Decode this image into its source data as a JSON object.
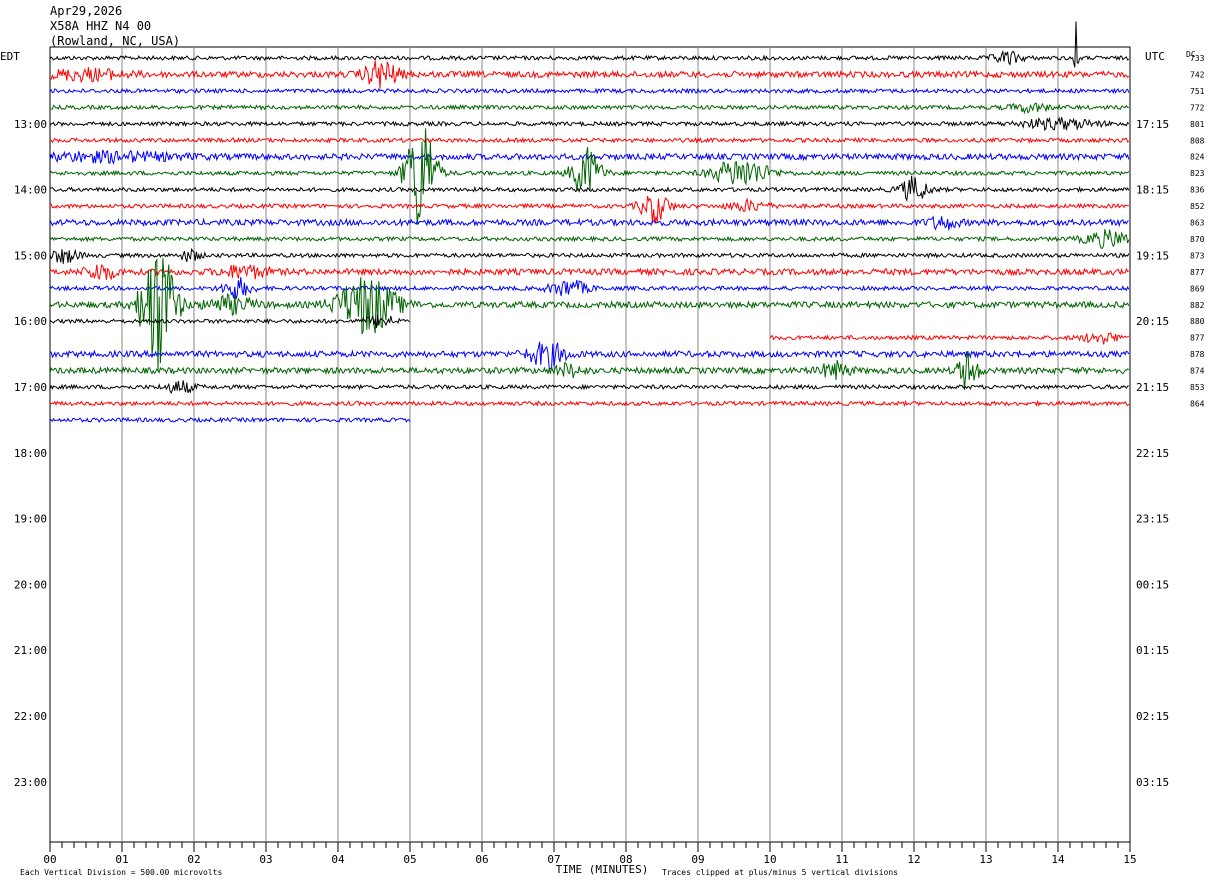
{
  "header": {
    "date": "Apr29,2026",
    "station": "X58A HHZ N4 00",
    "location": "(Rowland, NC, USA)"
  },
  "footer": {
    "scale_note": "Each Vertical Division =  500.00 microvolts",
    "clip_note": "Traces clipped at plus/minus 5 vertical divisions"
  },
  "chart_data": {
    "type": "line",
    "xlabel": "TIME (MINUTES)",
    "x_ticks": [
      "00",
      "01",
      "02",
      "03",
      "04",
      "05",
      "06",
      "07",
      "08",
      "09",
      "10",
      "11",
      "12",
      "13",
      "14",
      "15"
    ],
    "xlim": [
      0,
      15
    ],
    "left_axis_title": "EDT",
    "right_axis_title": "UTC",
    "dc_label": "DC",
    "left_hour_labels": [
      "13:00",
      "14:00",
      "15:00",
      "16:00",
      "17:00",
      "18:00",
      "19:00",
      "20:00",
      "21:00",
      "22:00",
      "23:00"
    ],
    "right_hour_labels": [
      "17:15",
      "18:15",
      "19:15",
      "20:15",
      "21:15",
      "22:15",
      "23:15",
      "00:15",
      "01:15",
      "02:15",
      "03:15"
    ],
    "trace_colors": [
      "#000000",
      "#ff0000",
      "#0000ff",
      "#006400"
    ],
    "dc_offsets": [
      733,
      742,
      751,
      772,
      801,
      808,
      824,
      823,
      836,
      852,
      863,
      870,
      873,
      877,
      869,
      882,
      880,
      877,
      878,
      874,
      853,
      864
    ],
    "traces": [
      {
        "end": 15,
        "amp": 2,
        "events": [
          {
            "t": 14.25,
            "amp": 36,
            "w": 0.04
          },
          {
            "t": 13.3,
            "amp": 6,
            "w": 0.3
          }
        ]
      },
      {
        "end": 15,
        "amp": 3,
        "events": [
          {
            "t": 4.6,
            "amp": 14,
            "w": 0.35
          },
          {
            "t": 0.5,
            "amp": 5,
            "w": 0.8
          }
        ]
      },
      {
        "end": 15,
        "amp": 2,
        "events": []
      },
      {
        "end": 15,
        "amp": 2,
        "events": [
          {
            "t": 13.6,
            "amp": 4,
            "w": 0.4
          }
        ]
      },
      {
        "end": 15,
        "amp": 2,
        "events": [
          {
            "t": 14.0,
            "amp": 5,
            "w": 0.8
          }
        ]
      },
      {
        "end": 15,
        "amp": 2,
        "events": []
      },
      {
        "end": 15,
        "amp": 3,
        "events": [
          {
            "t": 0.8,
            "amp": 4,
            "w": 1.5
          }
        ]
      },
      {
        "end": 15,
        "amp": 2,
        "events": [
          {
            "t": 5.15,
            "amp": 60,
            "w": 0.3
          },
          {
            "t": 7.45,
            "amp": 26,
            "w": 0.3
          },
          {
            "t": 9.6,
            "amp": 14,
            "w": 0.6
          }
        ]
      },
      {
        "end": 15,
        "amp": 2,
        "events": [
          {
            "t": 12.0,
            "amp": 12,
            "w": 0.3
          }
        ]
      },
      {
        "end": 15,
        "amp": 2,
        "events": [
          {
            "t": 8.4,
            "amp": 16,
            "w": 0.3
          },
          {
            "t": 9.7,
            "amp": 5,
            "w": 0.4
          }
        ]
      },
      {
        "end": 15,
        "amp": 3,
        "events": [
          {
            "t": 12.4,
            "amp": 6,
            "w": 0.3
          }
        ]
      },
      {
        "end": 15,
        "amp": 2,
        "events": [
          {
            "t": 14.7,
            "amp": 8,
            "w": 0.5
          }
        ]
      },
      {
        "end": 15,
        "amp": 2,
        "events": [
          {
            "t": 0.2,
            "amp": 7,
            "w": 0.3
          },
          {
            "t": 1.95,
            "amp": 6,
            "w": 0.2
          }
        ]
      },
      {
        "end": 15,
        "amp": 3,
        "events": [
          {
            "t": 0.7,
            "amp": 8,
            "w": 0.3
          },
          {
            "t": 2.7,
            "amp": 6,
            "w": 0.5
          }
        ]
      },
      {
        "end": 15,
        "amp": 2,
        "events": [
          {
            "t": 2.6,
            "amp": 10,
            "w": 0.3
          },
          {
            "t": 7.2,
            "amp": 8,
            "w": 0.4
          }
        ]
      },
      {
        "end": 15,
        "amp": 3,
        "events": [
          {
            "t": 1.5,
            "amp": 70,
            "w": 0.35
          },
          {
            "t": 4.4,
            "amp": 30,
            "w": 0.6
          },
          {
            "t": 2.5,
            "amp": 8,
            "w": 0.5
          }
        ]
      },
      {
        "end": 5,
        "amp": 2,
        "events": [
          {
            "t": 4.6,
            "amp": 6,
            "w": 0.3
          }
        ]
      },
      {
        "start": 10,
        "end": 15,
        "amp": 2,
        "events": [
          {
            "t": 14.6,
            "amp": 5,
            "w": 0.4
          }
        ]
      },
      {
        "end": 15,
        "amp": 3,
        "events": [
          {
            "t": 6.9,
            "amp": 12,
            "w": 0.4
          }
        ]
      },
      {
        "end": 15,
        "amp": 3,
        "events": [
          {
            "t": 12.75,
            "amp": 20,
            "w": 0.2
          },
          {
            "t": 10.9,
            "amp": 8,
            "w": 0.3
          },
          {
            "t": 7.2,
            "amp": 6,
            "w": 0.3
          }
        ]
      },
      {
        "end": 15,
        "amp": 2,
        "events": [
          {
            "t": 1.8,
            "amp": 6,
            "w": 0.3
          }
        ]
      },
      {
        "end": 15,
        "amp": 2,
        "events": []
      },
      {
        "end": 5,
        "amp": 2,
        "events": []
      }
    ]
  }
}
